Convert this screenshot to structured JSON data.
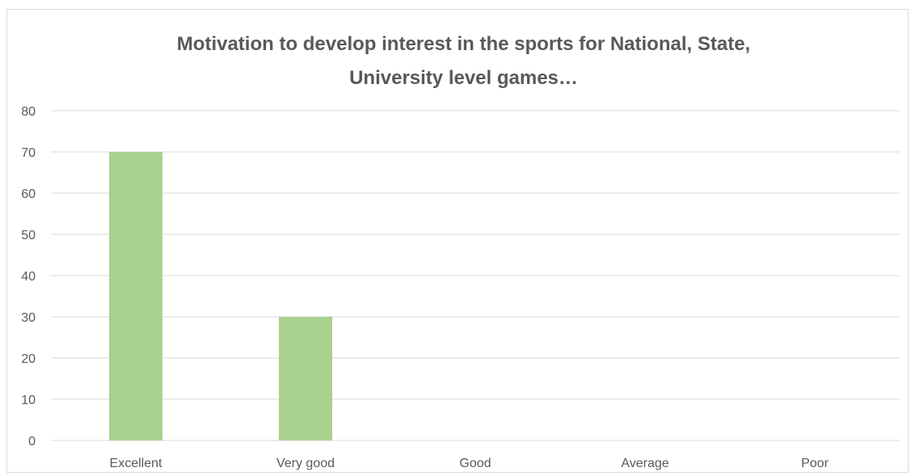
{
  "chart_data": {
    "type": "bar",
    "title_lines": [
      "Motivation to develop interest in the sports for National, State,",
      "University level games…"
    ],
    "categories": [
      "Excellent",
      "Very good",
      "Good",
      "Average",
      "Poor"
    ],
    "values": [
      70,
      30,
      0,
      0,
      0
    ],
    "ylim": [
      0,
      80
    ],
    "yticks": [
      0,
      10,
      20,
      30,
      40,
      50,
      60,
      70,
      80
    ],
    "xlabel": "",
    "ylabel": "",
    "grid": true,
    "legend": "none",
    "bar_color": "#a9d18e",
    "gridline_color": "#d9d9d9"
  }
}
